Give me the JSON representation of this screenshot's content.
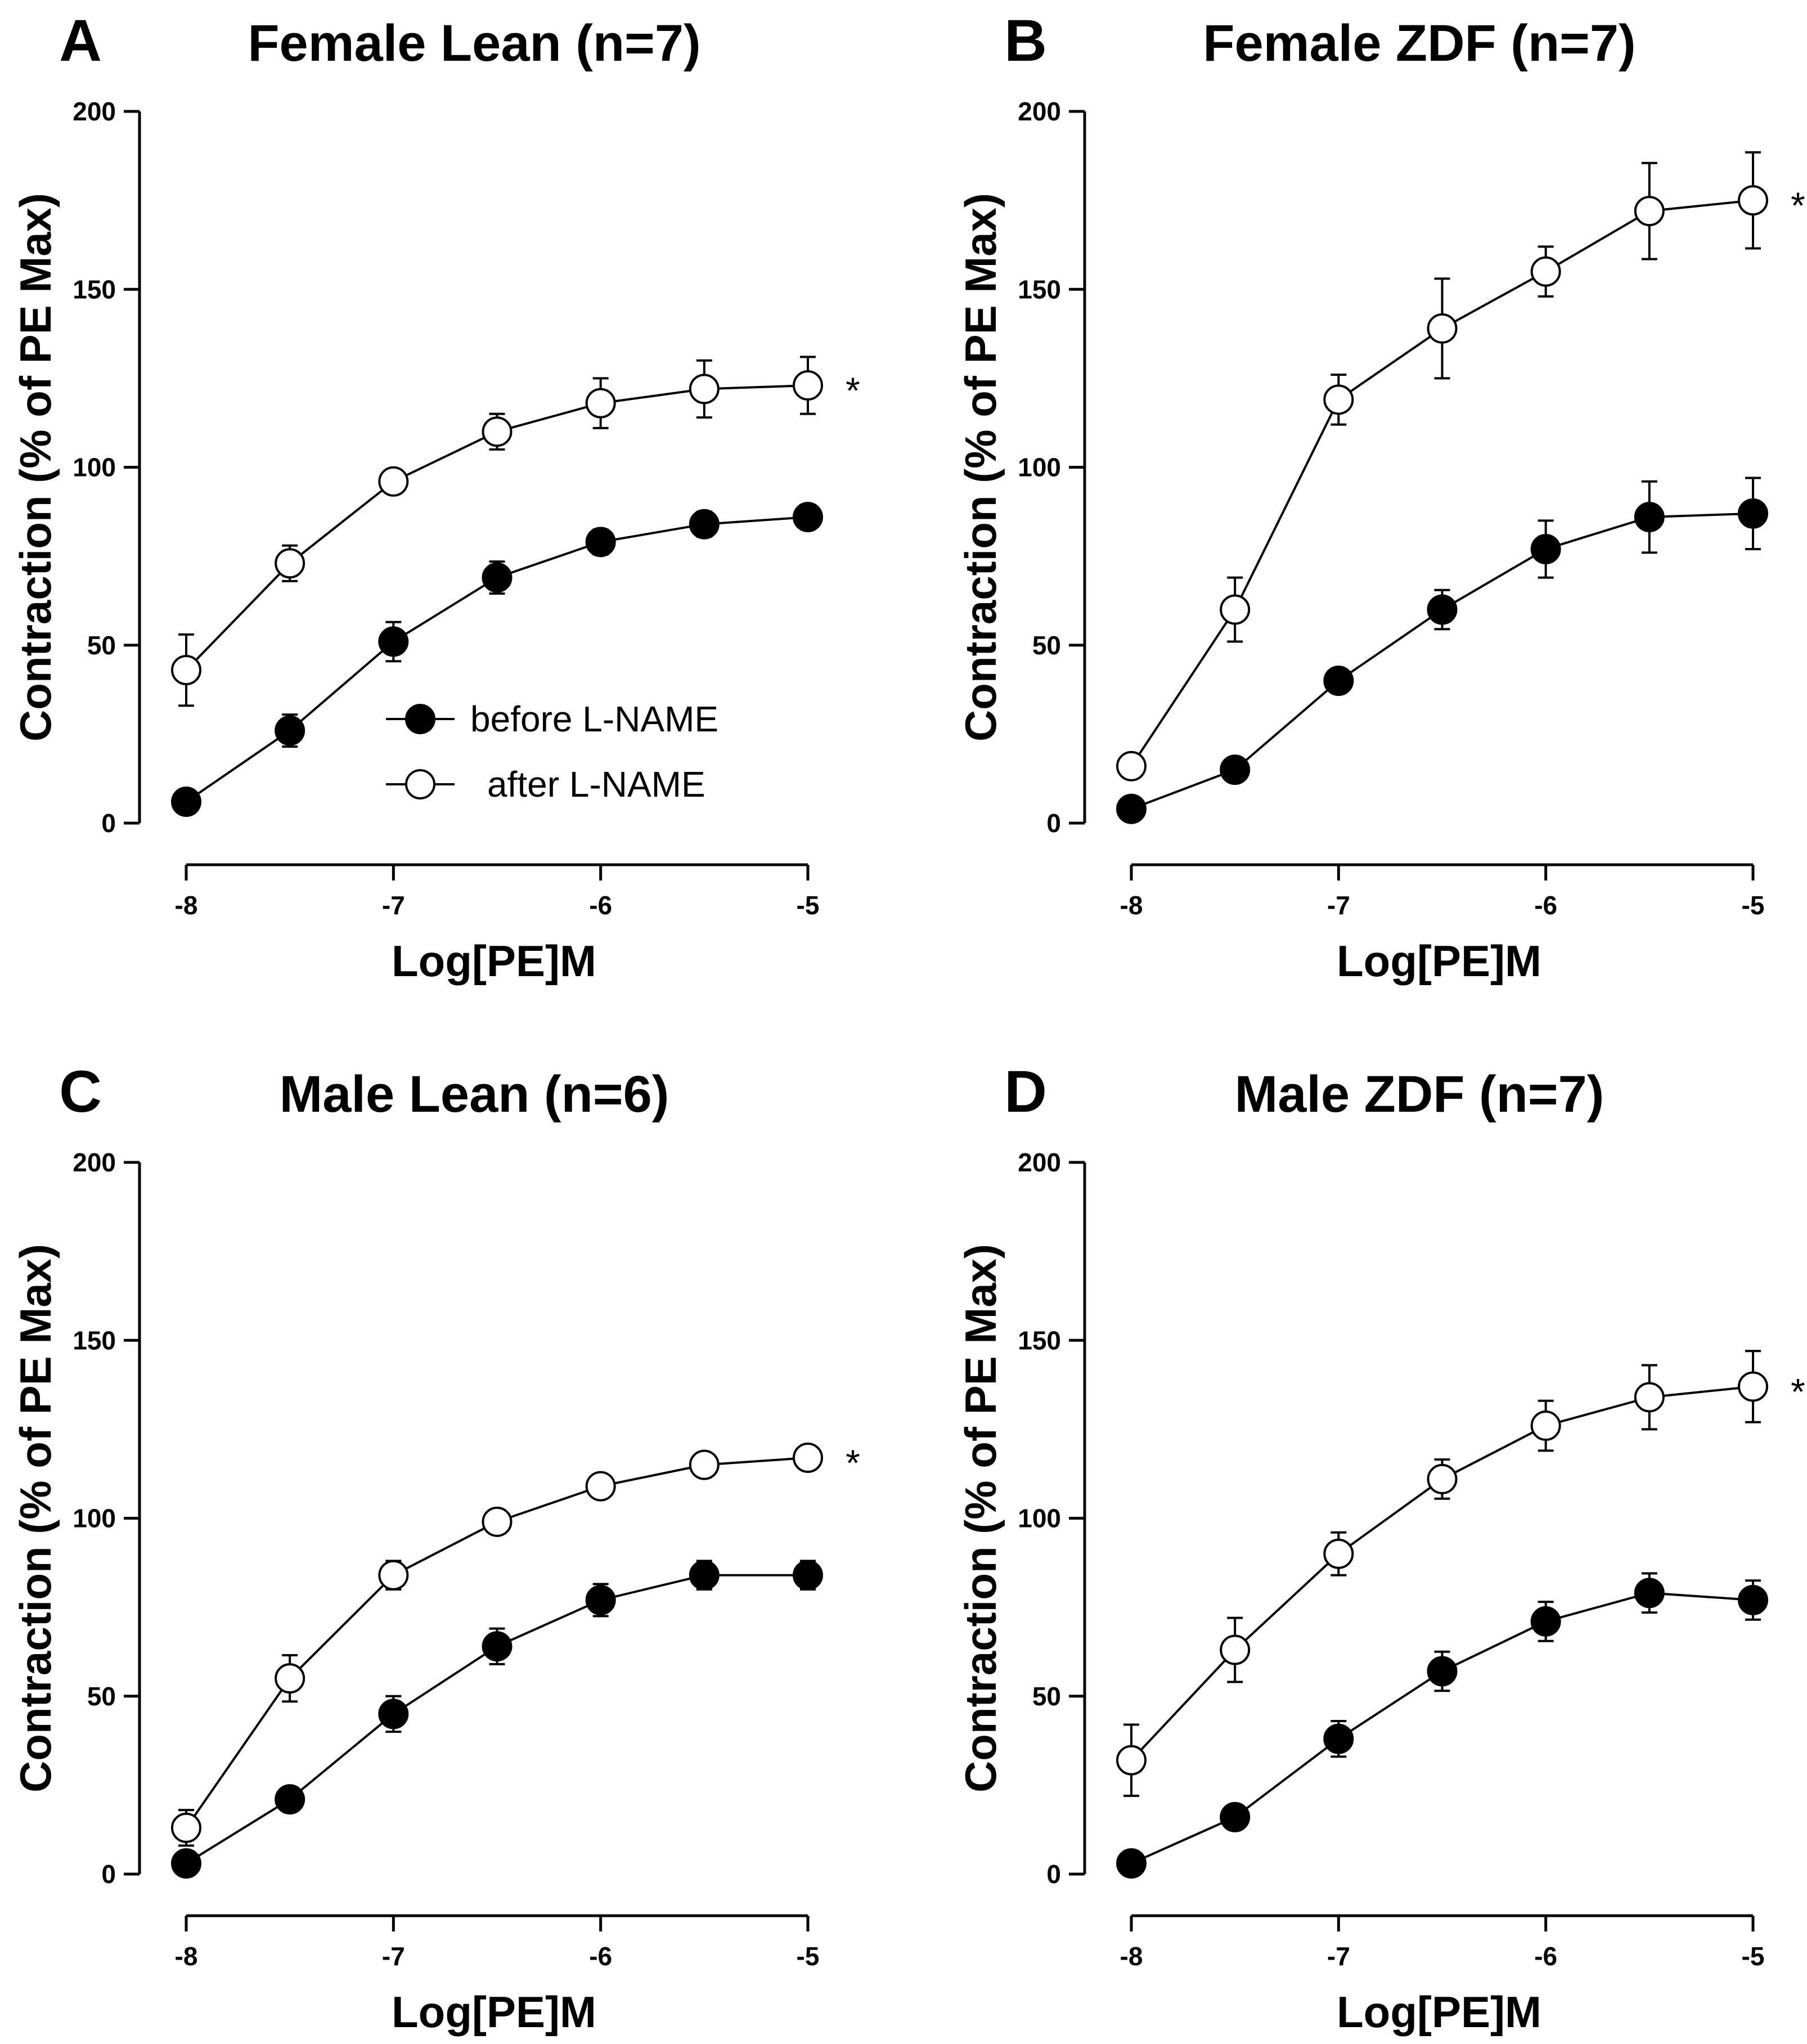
{
  "chart_data": [
    {
      "panel": "A",
      "type": "line",
      "title": "Female Lean (n=7)",
      "xlabel": "Log[PE]M",
      "ylabel": "Contraction (% of PE Max)",
      "xlim": [
        -8,
        -5
      ],
      "ylim": [
        0,
        200
      ],
      "x_ticks": [
        -8,
        -7,
        -6,
        -5
      ],
      "x_tick_labels": [
        "-8",
        "-7",
        "-6",
        "-5"
      ],
      "y_ticks": [
        0,
        50,
        100,
        150,
        200
      ],
      "y_tick_labels": [
        "0",
        "50",
        "100",
        "150",
        "200"
      ],
      "x": [
        -8,
        -7.5,
        -7,
        -6.5,
        -6,
        -5.5,
        -5
      ],
      "series": [
        {
          "name": "before L-NAME",
          "marker": "filled-circle",
          "values": [
            6,
            26,
            51,
            69,
            79,
            84,
            86
          ],
          "errors": [
            1.5,
            4.5,
            5.5,
            4.5,
            3.5,
            3.5,
            3
          ]
        },
        {
          "name": "after L-NAME",
          "marker": "open-circle",
          "values": [
            43,
            73,
            96,
            110,
            118,
            122,
            123
          ],
          "errors": [
            10,
            5,
            3,
            5,
            7,
            8,
            8
          ]
        }
      ],
      "legend": {
        "position": "lower-right",
        "entries": [
          "before L-NAME",
          "after L-NAME"
        ]
      },
      "annotation": "*"
    },
    {
      "panel": "B",
      "type": "line",
      "title": "Female ZDF (n=7)",
      "xlabel": "Log[PE]M",
      "ylabel": "Contraction (% of PE Max)",
      "xlim": [
        -8,
        -5
      ],
      "ylim": [
        0,
        200
      ],
      "x_ticks": [
        -8,
        -7,
        -6,
        -5
      ],
      "x_tick_labels": [
        "-8",
        "-7",
        "-6",
        "-5"
      ],
      "y_ticks": [
        0,
        50,
        100,
        150,
        200
      ],
      "y_tick_labels": [
        "0",
        "50",
        "100",
        "150",
        "200"
      ],
      "x": [
        -8,
        -7.5,
        -7,
        -6.5,
        -6,
        -5.5,
        -5
      ],
      "series": [
        {
          "name": "before L-NAME",
          "marker": "filled-circle",
          "values": [
            4,
            15,
            40,
            60,
            77,
            86,
            87
          ],
          "errors": [
            1,
            1.5,
            3,
            5.5,
            8,
            10,
            10
          ]
        },
        {
          "name": "after L-NAME",
          "marker": "open-circle",
          "values": [
            16,
            60,
            119,
            139,
            155,
            172,
            175
          ],
          "errors": [
            3,
            9,
            7,
            14,
            7,
            13.5,
            13.5
          ]
        }
      ],
      "annotation": "*"
    },
    {
      "panel": "C",
      "type": "line",
      "title": "Male Lean (n=6)",
      "xlabel": "Log[PE]M",
      "ylabel": "Contraction (% of PE Max)",
      "xlim": [
        -8,
        -5
      ],
      "ylim": [
        0,
        200
      ],
      "x_ticks": [
        -8,
        -7,
        -6,
        -5
      ],
      "x_tick_labels": [
        "-8",
        "-7",
        "-6",
        "-5"
      ],
      "y_ticks": [
        0,
        50,
        100,
        150,
        200
      ],
      "y_tick_labels": [
        "0",
        "50",
        "100",
        "150",
        "200"
      ],
      "x": [
        -8,
        -7.5,
        -7,
        -6.5,
        -6,
        -5.5,
        -5
      ],
      "series": [
        {
          "name": "before L-NAME",
          "marker": "filled-circle",
          "values": [
            3,
            21,
            45,
            64,
            77,
            84,
            84
          ],
          "errors": [
            1,
            3,
            5,
            5,
            4.5,
            4,
            4
          ]
        },
        {
          "name": "after L-NAME",
          "marker": "open-circle",
          "values": [
            13,
            55,
            84,
            99,
            109,
            115,
            117
          ],
          "errors": [
            5,
            6.5,
            4,
            1.5,
            1.5,
            1.5,
            1.5
          ]
        }
      ],
      "annotation": "*"
    },
    {
      "panel": "D",
      "type": "line",
      "title": "Male ZDF (n=7)",
      "xlabel": "Log[PE]M",
      "ylabel": "Contraction (% of PE Max)",
      "xlim": [
        -8,
        -5
      ],
      "ylim": [
        0,
        200
      ],
      "x_ticks": [
        -8,
        -7,
        -6,
        -5
      ],
      "x_tick_labels": [
        "-8",
        "-7",
        "-6",
        "-5"
      ],
      "y_ticks": [
        0,
        50,
        100,
        150,
        200
      ],
      "y_tick_labels": [
        "0",
        "50",
        "100",
        "150",
        "200"
      ],
      "x": [
        -8,
        -7.5,
        -7,
        -6.5,
        -6,
        -5.5,
        -5
      ],
      "series": [
        {
          "name": "before L-NAME",
          "marker": "filled-circle",
          "values": [
            3,
            16,
            38,
            57,
            71,
            79,
            77
          ],
          "errors": [
            1,
            3,
            5,
            5.5,
            5.5,
            5.5,
            5.5
          ]
        },
        {
          "name": "after L-NAME",
          "marker": "open-circle",
          "values": [
            32,
            63,
            90,
            111,
            126,
            134,
            137
          ],
          "errors": [
            10,
            9,
            6,
            5.5,
            7,
            9,
            10
          ]
        }
      ],
      "annotation": "*"
    }
  ]
}
